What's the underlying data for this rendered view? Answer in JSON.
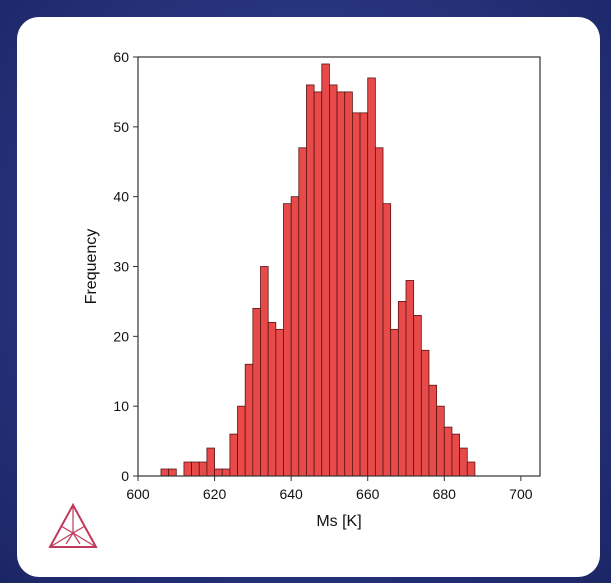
{
  "chart_data": {
    "type": "bar",
    "title": "",
    "xlabel": "Ms [K]",
    "ylabel": "Frequency",
    "xlim": [
      600,
      705
    ],
    "ylim": [
      0,
      60
    ],
    "xticks": [
      600,
      620,
      640,
      660,
      680,
      700
    ],
    "yticks": [
      0,
      10,
      20,
      30,
      40,
      50,
      60
    ],
    "grid": false,
    "bar_color": "#e84a4a",
    "bin_width": 2,
    "bins": [
      {
        "x": 606,
        "y": 1
      },
      {
        "x": 608,
        "y": 1
      },
      {
        "x": 610,
        "y": 0
      },
      {
        "x": 612,
        "y": 2
      },
      {
        "x": 614,
        "y": 2
      },
      {
        "x": 616,
        "y": 2
      },
      {
        "x": 618,
        "y": 4
      },
      {
        "x": 620,
        "y": 1
      },
      {
        "x": 622,
        "y": 1
      },
      {
        "x": 624,
        "y": 6
      },
      {
        "x": 626,
        "y": 10
      },
      {
        "x": 628,
        "y": 16
      },
      {
        "x": 630,
        "y": 24
      },
      {
        "x": 632,
        "y": 30
      },
      {
        "x": 634,
        "y": 22
      },
      {
        "x": 636,
        "y": 21
      },
      {
        "x": 638,
        "y": 39
      },
      {
        "x": 640,
        "y": 40
      },
      {
        "x": 642,
        "y": 47
      },
      {
        "x": 644,
        "y": 56
      },
      {
        "x": 646,
        "y": 55
      },
      {
        "x": 648,
        "y": 59
      },
      {
        "x": 650,
        "y": 56
      },
      {
        "x": 652,
        "y": 55
      },
      {
        "x": 654,
        "y": 55
      },
      {
        "x": 656,
        "y": 52
      },
      {
        "x": 658,
        "y": 52
      },
      {
        "x": 660,
        "y": 57
      },
      {
        "x": 662,
        "y": 47
      },
      {
        "x": 664,
        "y": 39
      },
      {
        "x": 666,
        "y": 21
      },
      {
        "x": 668,
        "y": 25
      },
      {
        "x": 670,
        "y": 28
      },
      {
        "x": 672,
        "y": 23
      },
      {
        "x": 674,
        "y": 18
      },
      {
        "x": 676,
        "y": 13
      },
      {
        "x": 678,
        "y": 10
      },
      {
        "x": 680,
        "y": 7
      },
      {
        "x": 682,
        "y": 6
      },
      {
        "x": 684,
        "y": 4
      },
      {
        "x": 686,
        "y": 2
      }
    ]
  },
  "logo": {
    "icon": "thermo-calc-triangle-icon",
    "color": "#c0395c"
  }
}
